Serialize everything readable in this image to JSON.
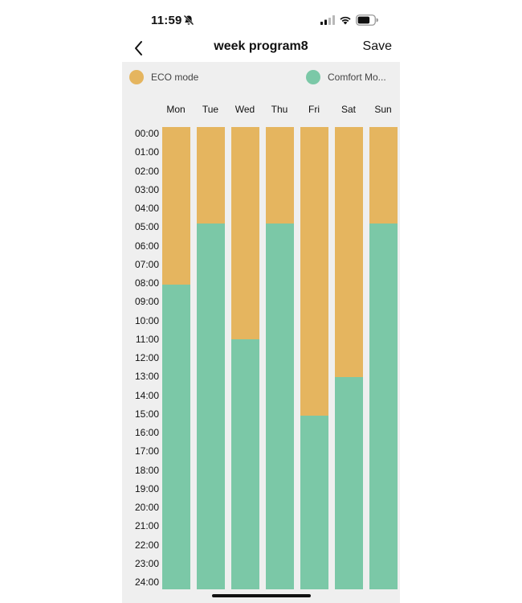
{
  "status_bar": {
    "time": "11:59"
  },
  "nav": {
    "title": "week program8",
    "save_label": "Save"
  },
  "legend": [
    {
      "label": "ECO mode",
      "color": "#e5b55f"
    },
    {
      "label": "Comfort Mo...",
      "color": "#7bc8a7"
    }
  ],
  "days": [
    {
      "label": "Mon",
      "comfort_start_hour": 8.2
    },
    {
      "label": "Tue",
      "comfort_start_hour": 5.0
    },
    {
      "label": "Wed",
      "comfort_start_hour": 11.0
    },
    {
      "label": "Thu",
      "comfort_start_hour": 5.0
    },
    {
      "label": "Fri",
      "comfort_start_hour": 15.0
    },
    {
      "label": "Sat",
      "comfort_start_hour": 13.0
    },
    {
      "label": "Sun",
      "comfort_start_hour": 5.0
    }
  ],
  "time_labels": [
    "00:00",
    "01:00",
    "02:00",
    "03:00",
    "04:00",
    "05:00",
    "06:00",
    "07:00",
    "08:00",
    "09:00",
    "10:00",
    "11:00",
    "12:00",
    "13:00",
    "14:00",
    "15:00",
    "16:00",
    "17:00",
    "18:00",
    "19:00",
    "20:00",
    "21:00",
    "22:00",
    "23:00",
    "24:00"
  ]
}
